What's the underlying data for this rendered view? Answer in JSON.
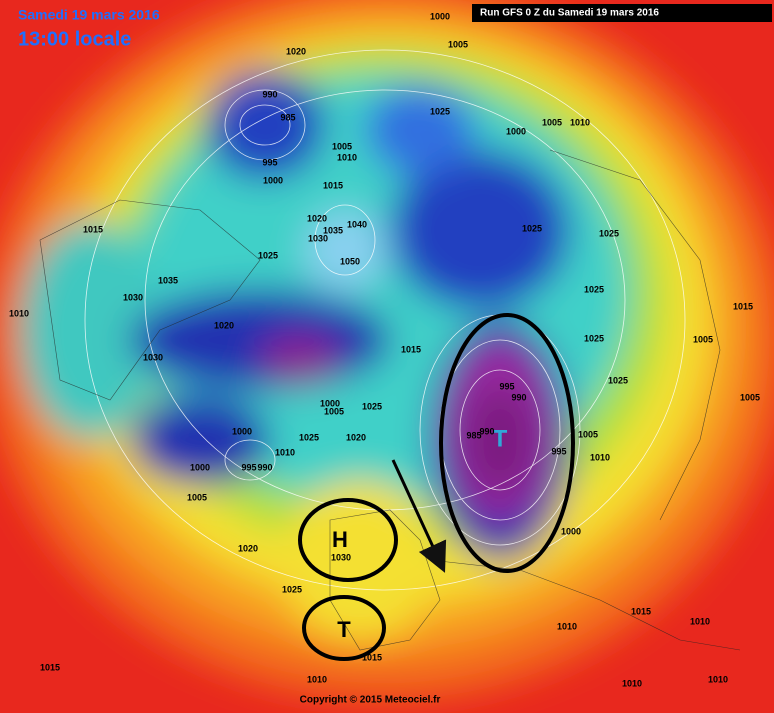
{
  "header": {
    "date": "Samedi 19 mars 2016",
    "time": "13:00 locale",
    "run": "Run GFS 0 Z du Samedi 19 mars 2016"
  },
  "footer": {
    "copyright": "Copyright © 2015 Meteociel.fr"
  },
  "annotations": [
    {
      "label": "H"
    },
    {
      "label": "T"
    }
  ],
  "low_label": "T",
  "isobar_labels": [
    1000,
    1005,
    1020,
    990,
    985,
    995,
    1000,
    1005,
    1010,
    1025,
    1000,
    1005,
    1010,
    1015,
    1020,
    1035,
    1030,
    1040,
    1050,
    1025,
    1015,
    1035,
    1030,
    1010,
    1030,
    1020,
    1025,
    1025,
    1025,
    1025,
    1015,
    1005,
    1015,
    1025,
    995,
    990,
    1005,
    1025,
    1000,
    1005,
    1000,
    1025,
    1020,
    1005,
    1010,
    1000,
    995,
    990,
    1010,
    1005,
    1000,
    1020,
    1030,
    1025,
    1015,
    1010,
    1010,
    1015,
    1015,
    1010,
    1010,
    1010,
    985,
    990,
    995
  ]
}
